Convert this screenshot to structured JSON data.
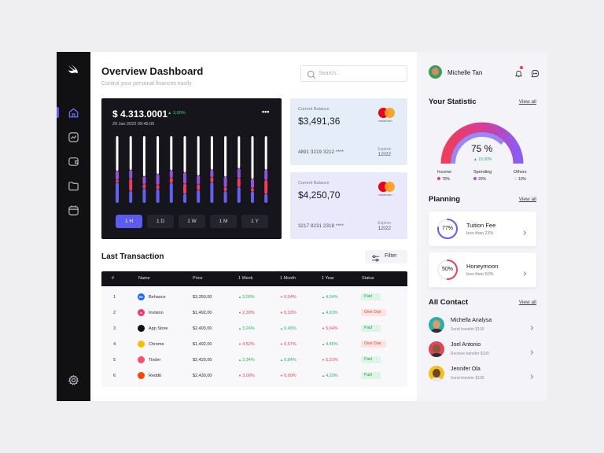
{
  "sidebar": {
    "items": [
      {
        "name": "home"
      },
      {
        "name": "analytics"
      },
      {
        "name": "wallet"
      },
      {
        "name": "folder"
      },
      {
        "name": "calendar"
      }
    ]
  },
  "header": {
    "title": "Overview Dashboard",
    "subtitle": "Control your personal finances easily",
    "search_placeholder": "Search..."
  },
  "balance_chart": {
    "balance": "$ 4.313.0001",
    "change": "3,00%",
    "date": "20 Jan 2022 09:45:00",
    "ranges": [
      "1 H",
      "1 D",
      "1 W",
      "1 M",
      "1 Y"
    ],
    "active_range": "1 H"
  },
  "chart_data": {
    "type": "bar",
    "title": "",
    "xlabel": "",
    "ylabel": "",
    "series": [
      {
        "values": [
          0.72,
          0.85,
          0.62,
          0.7,
          0.78,
          0.8,
          0.68,
          0.62,
          0.7,
          0.72,
          0.75,
          0.68
        ]
      },
      {
        "values": [
          0.18,
          0.22,
          0.12,
          0.2,
          0.17,
          0.25,
          0.15,
          0.14,
          0.18,
          0.22,
          0.16,
          0.21
        ]
      },
      {
        "values": [
          0.06,
          0.3,
          0.07,
          0.08,
          0.12,
          0.22,
          0.1,
          0.09,
          0.07,
          0.2,
          0.06,
          0.28
        ]
      },
      {
        "values": [
          0.42,
          0.3,
          0.22,
          0.25,
          0.45,
          0.2,
          0.22,
          0.38,
          0.2,
          0.35,
          0.2,
          0.18
        ]
      }
    ],
    "colors": [
      "#ffffff",
      "#9454d8",
      "#ef3d5c",
      "#6262ee"
    ]
  },
  "cards": [
    {
      "label": "Current Balance",
      "amount": "$3,491,36",
      "number": "4891 3219 3212 ****",
      "expires_label": "Expires",
      "expires": "12/22",
      "brand": "mastercard"
    },
    {
      "label": "Current Balance",
      "amount": "$4,250,70",
      "number": "3217 8231 2318 ****",
      "expires_label": "Expires",
      "expires": "12/22",
      "brand": "mastercard"
    }
  ],
  "transactions": {
    "title": "Last Transaction",
    "filter_label": "Filter",
    "columns": [
      "#",
      "Name",
      "Price",
      "1 Week",
      "1 Month",
      "1 Year",
      "Status"
    ],
    "rows": [
      {
        "n": "1",
        "name": "Behance",
        "price": "$3,350,00",
        "week": "3,00%",
        "week_dir": "up",
        "month": "0,04%",
        "month_dir": "down",
        "year": "4,04%",
        "year_dir": "up",
        "status": "Paid",
        "logo": "Bē",
        "logo_color": "#1769ff"
      },
      {
        "n": "2",
        "name": "Invision",
        "price": "$1,492,00",
        "week": "2,30%",
        "week_dir": "down",
        "month": "0,33%",
        "month_dir": "down",
        "year": "4,63%",
        "year_dir": "up",
        "status": "Over Due",
        "logo": "in",
        "logo_color": "#ff3366"
      },
      {
        "n": "3",
        "name": "App Store",
        "price": "$2,493,00",
        "week": "3,24%",
        "week_dir": "up",
        "month": "0,45%",
        "month_dir": "up",
        "year": "5,64%",
        "year_dir": "down",
        "status": "Paid",
        "logo": "",
        "logo_color": "#111111"
      },
      {
        "n": "4",
        "name": "Chrome",
        "price": "$1,492,00",
        "week": "4,52%",
        "week_dir": "down",
        "month": "0,67%",
        "month_dir": "down",
        "year": "4,45%",
        "year_dir": "up",
        "status": "Over Due",
        "logo": "",
        "logo_color": "#fbbc05"
      },
      {
        "n": "5",
        "name": "Tinder",
        "price": "$2,429,00",
        "week": "2,34%",
        "week_dir": "up",
        "month": "0,84%",
        "month_dir": "up",
        "year": "5,21%",
        "year_dir": "down",
        "status": "Paid",
        "logo": "",
        "logo_color": "#fd5068"
      },
      {
        "n": "6",
        "name": "Reddit",
        "price": "$2,430,00",
        "week": "3,00%",
        "week_dir": "down",
        "month": "0,90%",
        "month_dir": "down",
        "year": "4,20%",
        "year_dir": "up",
        "status": "Paid",
        "logo": "",
        "logo_color": "#ff4500"
      }
    ]
  },
  "user": {
    "name": "Michelle Tan"
  },
  "statistic": {
    "title": "Your Statistic",
    "view_all": "View all",
    "percent": "75 %",
    "change": "15,00%",
    "progress": 0.75,
    "legend": [
      {
        "label": "Income",
        "value": "70%",
        "color": "#ef3d5c"
      },
      {
        "label": "Spending",
        "value": "20%",
        "color": "#8c5cf2"
      },
      {
        "label": "Others",
        "value": "10%",
        "color": "#e5e5ec"
      }
    ]
  },
  "planning": {
    "title": "Planning",
    "view_all": "View all",
    "items": [
      {
        "name": "Tuition Fee",
        "sub": "less than 23%",
        "pct": "77%",
        "value": 0.77,
        "color": "#6a5cf2"
      },
      {
        "name": "Honeymoon",
        "sub": "less than 50%",
        "pct": "50%",
        "value": 0.5,
        "color": "#ef3d5c"
      }
    ]
  },
  "contacts": {
    "title": "All Contact",
    "view_all": "View all",
    "items": [
      {
        "name": "Michella Analysa",
        "sub": "Send transfer $100",
        "bg": "#26b0a8",
        "skin": "#d79a72",
        "shirt": "#2f2f35"
      },
      {
        "name": "Joel Antonio",
        "sub": "Recieve transfer $100",
        "bg": "#e4435c",
        "skin": "#8a5a3c",
        "shirt": "#2d2d33"
      },
      {
        "name": "Jennifer Ola",
        "sub": "Send transfer $100",
        "bg": "#f2c21b",
        "skin": "#6b442e",
        "shirt": "#e8e8ee"
      }
    ]
  }
}
